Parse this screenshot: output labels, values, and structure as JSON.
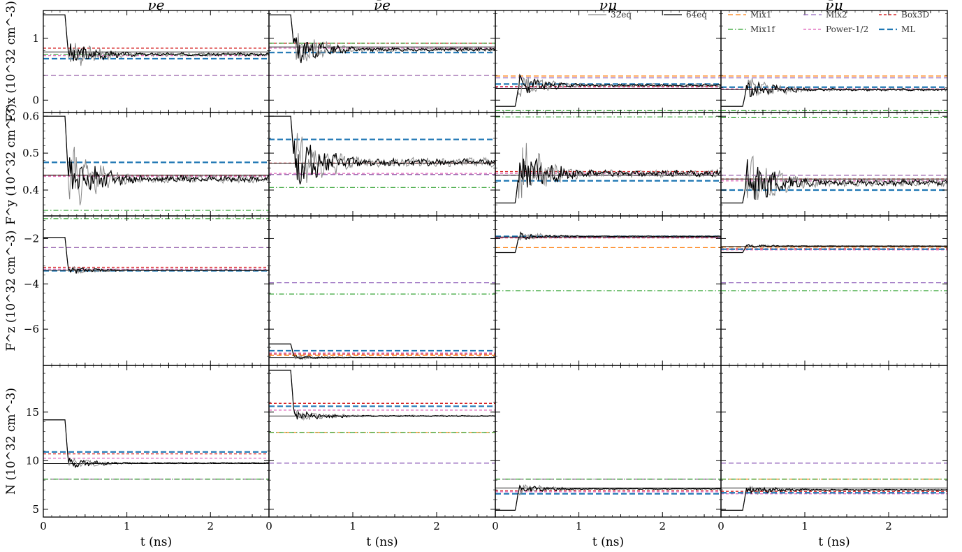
{
  "chart_data": {
    "type": "line",
    "columns": [
      {
        "key": "ne",
        "title": "νe"
      },
      {
        "key": "nebar",
        "title": "ν̄e"
      },
      {
        "key": "nmu",
        "title": "νμ"
      },
      {
        "key": "nmubar",
        "title": "ν̄μ"
      }
    ],
    "x": {
      "label": "t (ns)",
      "lim": [
        0,
        2.7
      ],
      "ticks": [
        0,
        1,
        2
      ],
      "tick_labels": [
        "0",
        "1",
        "2"
      ]
    },
    "rows": [
      {
        "key": "Fx",
        "ylabel": "F^x (10^32 cm^-3)",
        "ylim": [
          -0.2,
          1.45
        ],
        "ticks": [
          0,
          1
        ],
        "tick_labels": [
          "0",
          "1"
        ]
      },
      {
        "key": "Fy",
        "ylabel": "F^y (10^32 cm^-3)",
        "ylim": [
          0.33,
          0.61
        ],
        "ticks": [
          0.4,
          0.5,
          0.6
        ],
        "tick_labels": [
          "0.4",
          "0.5",
          "0.6"
        ]
      },
      {
        "key": "Fz",
        "ylabel": "F^z (10^32 cm^-3)",
        "ylim": [
          -7.6,
          -1.0
        ],
        "ticks": [
          -6,
          -4,
          -2
        ],
        "tick_labels": [
          "−6",
          "−4",
          "−2"
        ]
      },
      {
        "key": "N",
        "ylabel": "N (10^32 cm^-3)",
        "ylim": [
          4.2,
          19.8
        ],
        "ticks": [
          5,
          10,
          15
        ],
        "tick_labels": [
          "5",
          "10",
          "15"
        ]
      }
    ],
    "legend_sim": [
      {
        "name": "32eq",
        "color": "#888888",
        "style": "solid"
      },
      {
        "name": "64eq",
        "color": "#000000",
        "style": "solid"
      }
    ],
    "legend_closures": [
      {
        "key": "Mix1",
        "name": "Mix1",
        "color": "#ff7f0e",
        "style": "dash"
      },
      {
        "key": "Mix2",
        "name": "Mix2",
        "color": "#9467bd",
        "style": "dash"
      },
      {
        "key": "Box3D",
        "name": "Box3D",
        "color": "#d62728",
        "style": "shortdash"
      },
      {
        "key": "Mix1f",
        "name": "Mix1f",
        "color": "#2ca02c",
        "style": "dashdot"
      },
      {
        "key": "Power",
        "name": "Power-1/2",
        "color": "#e377c2",
        "style": "shortdash"
      },
      {
        "key": "ML",
        "name": "ML",
        "color": "#1f77b4",
        "style": "thickdash"
      }
    ],
    "panels": {
      "Fx": {
        "ne": {
          "start": 1.38,
          "jump_t": 0.3,
          "level": 0.74,
          "noise": 0.05,
          "ref": 0.78,
          "closures": {
            "Mix1": 0.4,
            "Mix2": 0.4,
            "Box3D": 0.84,
            "Mix1f": 0.74,
            "Power": 0.72,
            "ML": 0.67
          }
        },
        "nebar": {
          "start": 1.38,
          "jump_t": 0.3,
          "level": 0.82,
          "noise": 0.06,
          "ref": 0.86,
          "closures": {
            "Mix1": 0.4,
            "Mix2": 0.4,
            "Box3D": 0.92,
            "Mix1f": 0.92,
            "Power": 0.84,
            "ML": 0.77
          }
        },
        "nmu": {
          "start": -0.1,
          "jump_t": 0.28,
          "level": 0.24,
          "noise": 0.04,
          "ref": 0.19,
          "closures": {
            "Mix1": 0.39,
            "Mix2": 0.36,
            "Box3D": 0.22,
            "Mix1f": -0.17,
            "Power": 0.21,
            "ML": 0.26
          }
        },
        "nmubar": {
          "start": -0.1,
          "jump_t": 0.3,
          "level": 0.17,
          "noise": 0.04,
          "ref": 0.17,
          "closures": {
            "Mix1": 0.39,
            "Mix2": 0.36,
            "Box3D": 0.18,
            "Mix1f": -0.17,
            "Power": 0.18,
            "ML": 0.21
          }
        }
      },
      "Fy": {
        "ne": {
          "start": 0.6,
          "jump_t": 0.3,
          "level": 0.43,
          "noise": 0.018,
          "ref": 0.44,
          "closures": {
            "Mix1": 0.44,
            "Mix2": 0.44,
            "Box3D": 0.44,
            "Mix1f": 0.345,
            "Power": 0.437,
            "ML": 0.475
          }
        },
        "nebar": {
          "start": 0.6,
          "jump_t": 0.3,
          "level": 0.475,
          "noise": 0.02,
          "ref": 0.473,
          "closures": {
            "Mix1": 0.442,
            "Mix2": 0.442,
            "Box3D": 0.473,
            "Mix1f": 0.407,
            "Power": 0.445,
            "ML": 0.537
          }
        },
        "nmu": {
          "start": 0.365,
          "jump_t": 0.28,
          "level": 0.445,
          "noise": 0.018,
          "ref": 0.44,
          "closures": {
            "Mix1": 0.44,
            "Mix2": 0.44,
            "Box3D": 0.45,
            "Mix1f": 0.598,
            "Power": 0.445,
            "ML": 0.425
          }
        },
        "nmubar": {
          "start": 0.365,
          "jump_t": 0.3,
          "level": 0.42,
          "noise": 0.017,
          "ref": 0.43,
          "closures": {
            "Mix1": 0.44,
            "Mix2": 0.44,
            "Box3D": 0.43,
            "Mix1f": 0.596,
            "Power": 0.425,
            "ML": 0.4
          }
        }
      },
      "Fz": {
        "ne": {
          "start": -1.95,
          "jump_t": 0.3,
          "level": -3.4,
          "noise": 0.04,
          "ref": -3.4,
          "closures": {
            "Mix1": -2.4,
            "Mix2": -2.4,
            "Box3D": -3.27,
            "Mix1f": -1.12,
            "Power": -3.35,
            "ML": -3.42
          }
        },
        "nebar": {
          "start": -6.65,
          "jump_t": 0.3,
          "level": -7.25,
          "noise": 0.02,
          "ref": -7.25,
          "closures": {
            "Mix1": -7.15,
            "Mix2": -3.95,
            "Box3D": -7.1,
            "Mix1f": -4.45,
            "Power": -7.05,
            "ML": -6.95
          }
        },
        "nmu": {
          "start": -2.62,
          "jump_t": 0.28,
          "level": -1.9,
          "noise": 0.04,
          "ref": -1.93,
          "closures": {
            "Mix1": -2.4,
            "Mix2": -1.95,
            "Box3D": -1.97,
            "Mix1f": -4.3,
            "Power": -1.95,
            "ML": -1.9
          }
        },
        "nmubar": {
          "start": -2.62,
          "jump_t": 0.3,
          "level": -2.33,
          "noise": 0.02,
          "ref": -2.35,
          "closures": {
            "Mix1": -2.38,
            "Mix2": -3.95,
            "Box3D": -2.45,
            "Mix1f": -4.3,
            "Power": -2.5,
            "ML": -2.47
          }
        }
      },
      "N": {
        "ne": {
          "start": 14.2,
          "jump_t": 0.3,
          "level": 9.75,
          "noise": 0.12,
          "ref": 9.7,
          "closures": {
            "Mix1": 8.1,
            "Mix2": 8.1,
            "Box3D": 10.7,
            "Mix1f": 8.1,
            "Power": 10.25,
            "ML": 10.9
          }
        },
        "nebar": {
          "start": 19.3,
          "jump_t": 0.3,
          "level": 14.6,
          "noise": 0.15,
          "ref": 14.6,
          "closures": {
            "Mix1": 12.9,
            "Mix2": 9.75,
            "Box3D": 15.9,
            "Mix1f": 12.9,
            "Power": 15.2,
            "ML": 15.6
          }
        },
        "nmu": {
          "start": 4.9,
          "jump_t": 0.28,
          "level": 7.1,
          "noise": 0.12,
          "ref": 7.2,
          "closures": {
            "Mix1": 8.1,
            "Mix2": 8.1,
            "Box3D": 6.9,
            "Mix1f": 8.1,
            "Power": 6.8,
            "ML": 6.6
          }
        },
        "nmubar": {
          "start": 4.9,
          "jump_t": 0.3,
          "level": 7.0,
          "noise": 0.12,
          "ref": 7.2,
          "closures": {
            "Mix1": 8.1,
            "Mix2": 9.75,
            "Box3D": 6.85,
            "Mix1f": 8.1,
            "Power": 6.6,
            "ML": 6.7
          }
        }
      }
    }
  }
}
